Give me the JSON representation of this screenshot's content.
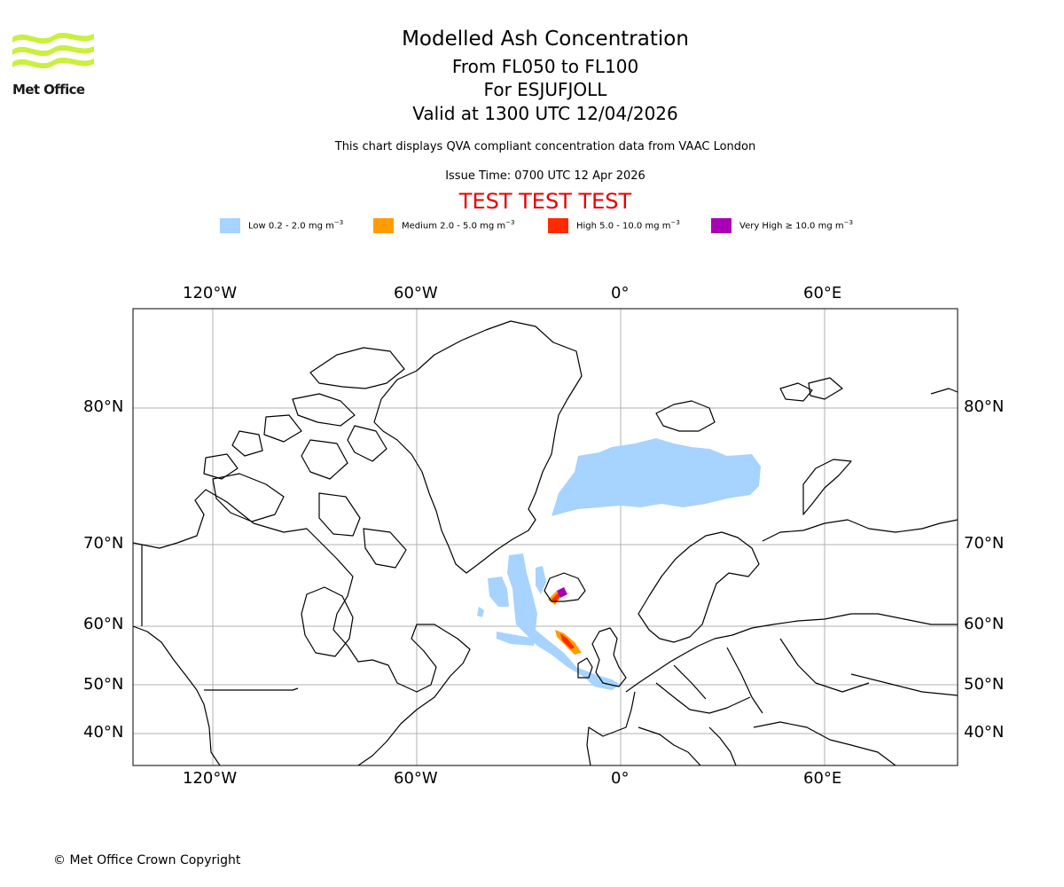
{
  "brand": {
    "name": "Met Office",
    "logo_color": "#c8f03c",
    "logo_text_color": "#1a1a1a"
  },
  "header": {
    "title": "Modelled Ash Concentration",
    "level_range": "From FL050 to FL100",
    "volcano": "For ESJUFJOLL",
    "valid_time": "Valid at 1300 UTC 12/04/2026",
    "note": "This chart displays QVA compliant concentration data from VAAC London",
    "issue_time": "Issue Time: 0700 UTC 12 Apr 2026",
    "test_banner": "TEST TEST TEST",
    "test_color": "#e60000"
  },
  "legend": {
    "items": [
      {
        "label": "Low 0.2 - 2.0 mg m",
        "unit_exp": "−3",
        "color": "#a6d3ff"
      },
      {
        "label": "Medium 2.0 - 5.0 mg m",
        "unit_exp": "−3",
        "color": "#ff9d00"
      },
      {
        "label": "High 5.0 - 10.0 mg m",
        "unit_exp": "−3",
        "color": "#ff2b00"
      },
      {
        "label": "Very High  ≥  10.0 mg m",
        "unit_exp": "−3",
        "color": "#a800b6"
      }
    ]
  },
  "map": {
    "projection": "plate-carree-like",
    "lon_ticks": [
      "120°W",
      "60°W",
      "0°",
      "60°E"
    ],
    "lat_ticks": [
      "80°N",
      "70°N",
      "60°N",
      "50°N",
      "40°N"
    ],
    "gridlines": true,
    "grid_color": "#b0b0b0",
    "coastline_color": "#000000"
  },
  "footer": {
    "copyright": "© Met Office Crown Copyright"
  }
}
